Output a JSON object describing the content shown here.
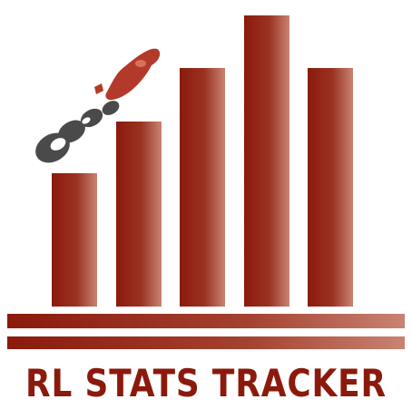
{
  "logo": {
    "title": "RL STATS TRACKER",
    "icon": "rocket-car-on-bar-chart-icon",
    "colors": {
      "bar_dark": "#8b1a0c",
      "bar_light": "#c98373",
      "text": "#8b1a0c",
      "car_red": "#b33a2a",
      "smoke_gray": "#4a4a4a"
    }
  }
}
